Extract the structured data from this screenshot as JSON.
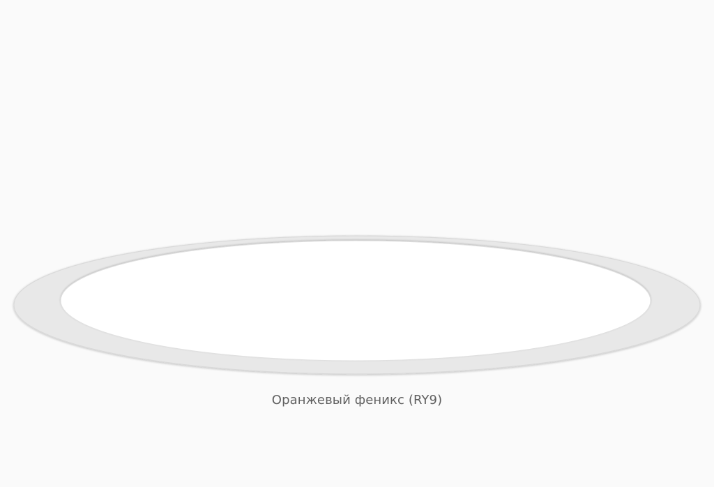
{
  "product": {
    "name": "Оранжевый феникс (RY9)"
  },
  "colors": {
    "background": "#fafafa",
    "plate_rim": "#e8e8e8",
    "plate_center": "#ffffff",
    "caption_text": "#5f5f5f"
  }
}
